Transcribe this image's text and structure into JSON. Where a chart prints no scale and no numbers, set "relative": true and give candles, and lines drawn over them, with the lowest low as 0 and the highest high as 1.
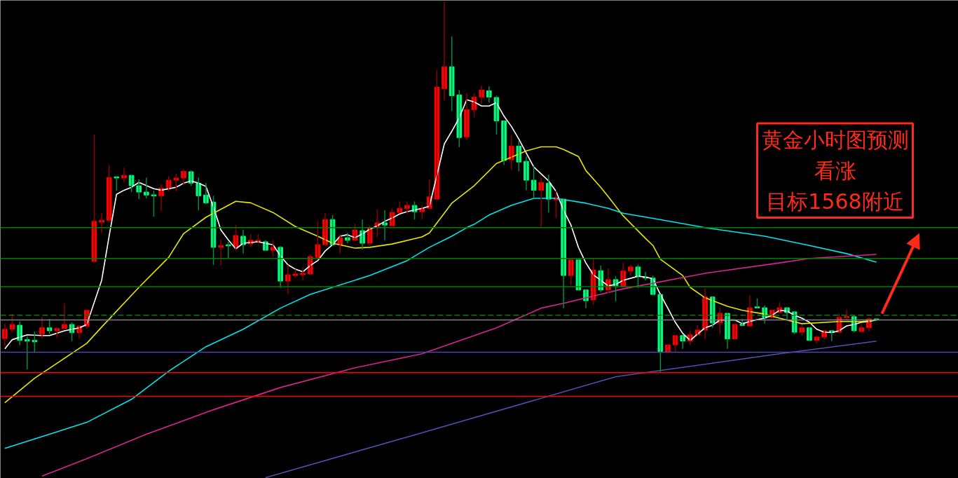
{
  "chart_data": {
    "type": "candlestick",
    "relative": true,
    "grid": false,
    "colors": [
      "#ff0000",
      "#ff0000",
      "#00ff7f",
      "#00ff7f",
      "#00ff7f",
      "#ff0000",
      "#00ff7f",
      "#ff0000",
      "#ff0000",
      "#00ff7f",
      "#ff0000",
      "#ff0000",
      "#ff0000",
      "#ff0000",
      "#ff0000",
      "#00ff7f",
      "#ff0000",
      "#00ff7f",
      "#00ff7f",
      "#00ff7f",
      "#00ff7f",
      "#ff0000",
      "#ff0000",
      "#ff0000",
      "#ff0000",
      "#00ff7f",
      "#00ff7f",
      "#00ff7f",
      "#00ff7f",
      "#ff0000",
      "#00ff7f",
      "#ff0000",
      "#00ff7f",
      "#ff0000",
      "#ff0000",
      "#00ff7f",
      "#ff0000",
      "#00ff7f",
      "#ff0000",
      "#ff0000",
      "#ff0000",
      "#ff0000",
      "#ff0000",
      "#ff0000",
      "#00ff7f",
      "#ff0000",
      "#00ff7f",
      "#ff0000",
      "#00ff7f",
      "#ff0000",
      "#ff0000",
      "#00ff7f",
      "#ff0000",
      "#ff0000",
      "#ff0000",
      "#00ff7f",
      "#ff0000",
      "#ff0000",
      "#ff0000",
      "#ff0000",
      "#00ff7f",
      "#00ff7f",
      "#ff0000",
      "#ff0000",
      "#ff0000",
      "#00ff7f",
      "#00ff7f",
      "#00ff7f",
      "#ff0000",
      "#00ff7f",
      "#00ff7f",
      "#00ff7f",
      "#ff0000",
      "#00ff7f",
      "#ff0000",
      "#00ff7f",
      "#ff0000",
      "#00ff7f",
      "#00ff7f",
      "#ff0000",
      "#00ff7f",
      "#ff0000",
      "#00ff7f",
      "#ff0000",
      "#ff0000",
      "#00ff7f",
      "#00ff7f",
      "#00ff7f",
      "#00ff7f",
      "#ff0000",
      "#ff0000",
      "#00ff7f",
      "#ff0000",
      "#ff0000",
      "#ff0000",
      "#00ff7f",
      "#ff0000",
      "#00ff7f",
      "#ff0000",
      "#00ff7f",
      "#ff0000",
      "#00ff7f",
      "#00ff7f",
      "#ff0000",
      "#ff0000",
      "#00ff7f",
      "#00ff7f",
      "#ff0000",
      "#00ff7f",
      "#ff0000",
      "#ff0000",
      "#00ff7f",
      "#ff0000",
      "#ff0000",
      "#00ff7f",
      "#ff0000",
      "#ff0000",
      "#00ff7f"
    ],
    "categories": [
      null,
      null,
      null,
      null,
      null,
      null,
      null,
      null,
      null,
      null,
      null,
      null,
      null,
      null,
      null,
      null,
      null,
      null,
      null,
      null,
      null,
      null,
      null,
      null,
      null,
      null,
      null,
      null,
      null,
      null,
      null,
      null,
      null,
      null,
      null,
      null,
      null,
      null,
      null,
      null,
      null,
      null,
      null,
      null,
      null,
      null,
      null,
      null,
      null,
      null,
      null,
      null,
      null,
      null,
      null,
      null,
      null,
      null,
      null,
      null,
      null,
      null,
      null,
      null,
      null,
      null,
      null,
      null,
      null,
      null,
      null,
      null,
      null,
      null,
      null,
      null,
      null,
      null,
      null,
      null,
      null,
      null,
      null,
      null,
      null,
      null,
      null,
      null,
      null,
      null,
      null,
      null,
      null,
      null,
      null,
      null,
      null,
      null,
      null,
      null,
      null,
      null,
      null,
      null,
      null,
      null,
      null,
      null,
      null,
      null,
      null,
      null,
      null,
      null,
      null,
      null,
      null,
      null
    ],
    "ohlc": [
      [
        0.092,
        0.132,
        0.07,
        0.117
      ],
      [
        0.117,
        0.158,
        0.108,
        0.13
      ],
      [
        0.128,
        0.138,
        0.074,
        0.087
      ],
      [
        0.089,
        0.098,
        0.009,
        0.085
      ],
      [
        0.087,
        0.111,
        0.055,
        0.083
      ],
      [
        0.104,
        0.151,
        0.091,
        0.121
      ],
      [
        0.121,
        0.145,
        0.104,
        0.113
      ],
      [
        0.113,
        0.123,
        0.094,
        0.119
      ],
      [
        0.119,
        0.187,
        0.117,
        0.13
      ],
      [
        0.13,
        0.136,
        0.085,
        0.108
      ],
      [
        0.108,
        0.128,
        0.092,
        0.125
      ],
      [
        0.125,
        0.168,
        0.119,
        0.168
      ],
      [
        0.3,
        0.642,
        0.296,
        0.408
      ],
      [
        0.406,
        0.43,
        0.377,
        0.411
      ],
      [
        0.411,
        0.56,
        0.404,
        0.526
      ],
      [
        0.528,
        0.53,
        0.491,
        0.525
      ],
      [
        0.525,
        0.553,
        0.513,
        0.532
      ],
      [
        0.532,
        0.534,
        0.487,
        0.504
      ],
      [
        0.504,
        0.521,
        0.468,
        0.487
      ],
      [
        0.487,
        0.526,
        0.47,
        0.479
      ],
      [
        0.479,
        0.491,
        0.421,
        0.477
      ],
      [
        0.477,
        0.509,
        0.436,
        0.498
      ],
      [
        0.498,
        0.53,
        0.489,
        0.519
      ],
      [
        0.519,
        0.536,
        0.489,
        0.525
      ],
      [
        0.525,
        0.549,
        0.506,
        0.543
      ],
      [
        0.542,
        0.545,
        0.504,
        0.511
      ],
      [
        0.511,
        0.526,
        0.438,
        0.477
      ],
      [
        0.479,
        0.511,
        0.455,
        0.458
      ],
      [
        0.46,
        0.477,
        0.291,
        0.338
      ],
      [
        0.338,
        0.358,
        0.289,
        0.343
      ],
      [
        0.345,
        0.353,
        0.308,
        0.342
      ],
      [
        0.34,
        0.398,
        0.33,
        0.37
      ],
      [
        0.368,
        0.385,
        0.321,
        0.345
      ],
      [
        0.347,
        0.374,
        0.338,
        0.357
      ],
      [
        0.353,
        0.374,
        0.349,
        0.357
      ],
      [
        0.353,
        0.357,
        0.328,
        0.33
      ],
      [
        0.33,
        0.357,
        0.313,
        0.338
      ],
      [
        0.338,
        0.342,
        0.228,
        0.247
      ],
      [
        0.247,
        0.291,
        0.213,
        0.264
      ],
      [
        0.262,
        0.279,
        0.255,
        0.266
      ],
      [
        0.264,
        0.285,
        0.249,
        0.268
      ],
      [
        0.266,
        0.319,
        0.264,
        0.313
      ],
      [
        0.311,
        0.409,
        0.311,
        0.345
      ],
      [
        0.345,
        0.43,
        0.342,
        0.413
      ],
      [
        0.413,
        0.425,
        0.343,
        0.345
      ],
      [
        0.345,
        0.374,
        0.321,
        0.364
      ],
      [
        0.364,
        0.377,
        0.349,
        0.357
      ],
      [
        0.357,
        0.402,
        0.355,
        0.385
      ],
      [
        0.383,
        0.413,
        0.332,
        0.349
      ],
      [
        0.349,
        0.396,
        0.342,
        0.391
      ],
      [
        0.394,
        0.44,
        0.366,
        0.404
      ],
      [
        0.404,
        0.438,
        0.357,
        0.398
      ],
      [
        0.396,
        0.443,
        0.394,
        0.432
      ],
      [
        0.432,
        0.462,
        0.43,
        0.443
      ],
      [
        0.443,
        0.462,
        0.428,
        0.451
      ],
      [
        0.451,
        0.462,
        0.413,
        0.434
      ],
      [
        0.434,
        0.451,
        0.413,
        0.443
      ],
      [
        0.443,
        0.521,
        0.44,
        0.474
      ],
      [
        0.468,
        0.817,
        0.468,
        0.77
      ],
      [
        0.766,
        1,
        0.734,
        0.825
      ],
      [
        0.825,
        0.906,
        0.706,
        0.747
      ],
      [
        0.749,
        0.762,
        0.608,
        0.634
      ],
      [
        0.636,
        0.753,
        0.628,
        0.709
      ],
      [
        0.709,
        0.753,
        0.689,
        0.743
      ],
      [
        0.743,
        0.774,
        0.726,
        0.762
      ],
      [
        0.76,
        0.772,
        0.728,
        0.743
      ],
      [
        0.742,
        0.747,
        0.642,
        0.679
      ],
      [
        0.679,
        0.679,
        0.56,
        0.572
      ],
      [
        0.574,
        0.64,
        0.547,
        0.611
      ],
      [
        0.611,
        0.626,
        0.543,
        0.568
      ],
      [
        0.57,
        0.583,
        0.492,
        0.519
      ],
      [
        0.519,
        0.557,
        0.47,
        0.492
      ],
      [
        0.492,
        0.525,
        0.392,
        0.513
      ],
      [
        0.511,
        0.534,
        0.432,
        0.468
      ],
      [
        0.466,
        0.491,
        0.417,
        0.472
      ],
      [
        0.468,
        0.468,
        0.174,
        0.262
      ],
      [
        0.262,
        0.304,
        0.236,
        0.304
      ],
      [
        0.304,
        0.309,
        0.221,
        0.223
      ],
      [
        0.223,
        0.225,
        0.174,
        0.194
      ],
      [
        0.196,
        0.306,
        0.183,
        0.277
      ],
      [
        0.275,
        0.289,
        0.217,
        0.223
      ],
      [
        0.223,
        0.281,
        0.215,
        0.251
      ],
      [
        0.251,
        0.26,
        0.192,
        0.234
      ],
      [
        0.232,
        0.296,
        0.23,
        0.274
      ],
      [
        0.274,
        0.291,
        0.262,
        0.285
      ],
      [
        0.285,
        0.291,
        0.228,
        0.26
      ],
      [
        0.258,
        0.272,
        0.249,
        0.255
      ],
      [
        0.255,
        0.262,
        0.208,
        0.211
      ],
      [
        0.211,
        0.211,
        0,
        0.055
      ],
      [
        0.055,
        0.075,
        0.055,
        0.075
      ],
      [
        0.075,
        0.102,
        0.055,
        0.1
      ],
      [
        0.1,
        0.1,
        0.064,
        0.085
      ],
      [
        0.085,
        0.113,
        0.074,
        0.102
      ],
      [
        0.102,
        0.128,
        0.102,
        0.115
      ],
      [
        0.115,
        0.228,
        0.089,
        0.204
      ],
      [
        0.204,
        0.204,
        0.121,
        0.134
      ],
      [
        0.134,
        0.175,
        0.104,
        0.16
      ],
      [
        0.16,
        0.16,
        0.064,
        0.091
      ],
      [
        0.091,
        0.13,
        0.091,
        0.13
      ],
      [
        0.13,
        0.145,
        0.128,
        0.128
      ],
      [
        0.126,
        0.209,
        0.126,
        0.175
      ],
      [
        0.177,
        0.2,
        0.174,
        0.175
      ],
      [
        0.175,
        0.181,
        0.132,
        0.149
      ],
      [
        0.149,
        0.17,
        0.147,
        0.168
      ],
      [
        0.162,
        0.191,
        0.16,
        0.175
      ],
      [
        0.175,
        0.177,
        0.142,
        0.162
      ],
      [
        0.164,
        0.166,
        0.104,
        0.109
      ],
      [
        0.109,
        0.13,
        0.1,
        0.121
      ],
      [
        0.121,
        0.123,
        0.085,
        0.087
      ],
      [
        0.087,
        0.1,
        0.079,
        0.096
      ],
      [
        0.096,
        0.113,
        0.089,
        0.113
      ],
      [
        0.113,
        0.113,
        0.085,
        0.108
      ],
      [
        0.109,
        0.16,
        0.108,
        0.149
      ],
      [
        0.149,
        0.17,
        0.142,
        0.151
      ],
      [
        0.151,
        0.155,
        0.109,
        0.113
      ],
      [
        0.111,
        0.13,
        0.111,
        0.121
      ],
      [
        0.121,
        0.149,
        0.111,
        0.145
      ],
      [
        0.145,
        0.145,
        0.142,
        0.142
      ]
    ],
    "series": [
      {
        "type": "line",
        "color": "#ffffff",
        "values": [
          0.064,
          0.089,
          null,
          0.102,
          null,
          0.1,
          0.1,
          null,
          0.113,
          null,
          0.121,
          0.13,
          null,
          0.249,
          0.368,
          0.481,
          0.492,
          0.5,
          0.513,
          null,
          0.496,
          0.492,
          null,
          0.5,
          0.511,
          0.517,
          0.511,
          0.502,
          0.447,
          0.385,
          0.358,
          0.334,
          0.349,
          null,
          0.353,
          null,
          0.345,
          0.315,
          0.291,
          0.279,
          0.272,
          0.289,
          0.302,
          0.328,
          0.345,
          0.368,
          0.372,
          0.364,
          0.374,
          0.387,
          0.396,
          0.408,
          0.417,
          0.428,
          0.434,
          null,
          0.443,
          0.449,
          0.532,
          0.617,
          0.651,
          0.687,
          0.736,
          0.73,
          0.719,
          0.719,
          0.728,
          0.692,
          0.664,
          0.63,
          0.592,
          0.555,
          0.536,
          0.517,
          0.489,
          0.438,
          0.398,
          0.338,
          0.296,
          0.264,
          0.249,
          0.234,
          0.238,
          0.249,
          null,
          0.26,
          0.258,
          0.253,
          0.211,
          0.174,
          0.136,
          0.106,
          0.087,
          0.104,
          0.121,
          0.128,
          0.142,
          null,
          0.142,
          0.132,
          0.138,
          0.143,
          0.147,
          0.155,
          0.168,
          0.166,
          0.155,
          0.147,
          0.136,
          0.117,
          0.109,
          0.108,
          0.113,
          0.126,
          0.13,
          0.136,
          0.138,
          0.142
        ]
      },
      {
        "type": "line",
        "color": "#e6e600",
        "values": [
          -0.081,
          null,
          null,
          null,
          -0.015,
          null,
          null,
          null,
          null,
          null,
          null,
          0.079,
          null,
          0.123,
          null,
          null,
          null,
          null,
          0.23,
          null,
          null,
          null,
          0.311,
          null,
          0.375,
          null,
          null,
          0.419,
          null,
          null,
          null,
          0.462,
          null,
          0.458,
          null,
          null,
          0.432,
          null,
          null,
          0.394,
          null,
          null,
          0.368,
          null,
          0.349,
          null,
          null,
          0.336,
          null,
          0.338,
          null,
          null,
          0.347,
          null,
          null,
          null,
          0.366,
          0.377,
          null,
          null,
          0.457,
          null,
          null,
          0.504,
          null,
          null,
          0.564,
          null,
          null,
          null,
          0.598,
          null,
          0.609,
          null,
          0.609,
          0.602,
          null,
          0.583,
          0.545,
          null,
          0.5,
          0.475,
          null,
          0.423,
          null,
          null,
          0.362,
          0.343,
          0.306,
          null,
          null,
          0.262,
          0.23,
          null,
          0.202,
          null,
          null,
          0.179,
          null,
          0.168,
          null,
          null,
          0.158,
          null,
          0.147,
          null,
          null,
          0.132,
          null,
          null,
          null,
          null,
          0.138,
          null,
          null,
          0.138,
          null,
          0.142
        ]
      },
      {
        "type": "line",
        "color": "#00e5ee",
        "values": [
          -0.204,
          null,
          null,
          null,
          null,
          null,
          -0.166,
          null,
          null,
          null,
          null,
          -0.134,
          null,
          null,
          null,
          null,
          null,
          -0.072,
          null,
          null,
          null,
          null,
          0.004,
          null,
          null,
          null,
          null,
          0.07,
          null,
          null,
          null,
          null,
          0.117,
          null,
          null,
          null,
          null,
          0.174,
          null,
          null,
          null,
          0.211,
          null,
          null,
          null,
          null,
          null,
          null,
          null,
          0.262,
          null,
          null,
          null,
          null,
          0.302,
          null,
          null,
          0.338,
          null,
          null,
          0.368,
          null,
          0.391,
          0.4,
          null,
          0.425,
          null,
          null,
          0.451,
          null,
          null,
          0.47,
          null,
          null,
          0.47,
          null,
          null,
          null,
          0.457,
          null,
          null,
          0.443,
          null,
          0.43,
          null,
          null,
          null,
          null,
          null,
          0.409,
          null,
          null,
          null,
          null,
          0.391,
          null,
          null,
          null,
          null,
          null,
          null,
          null,
          0.368,
          null,
          null,
          null,
          null,
          null,
          0.343,
          null,
          null,
          null,
          null,
          0.321,
          null,
          null,
          null,
          0.298
        ]
      },
      {
        "type": "line",
        "color": "#d6258f",
        "values": [
          null,
          null,
          null,
          null,
          null,
          -0.279,
          null,
          null,
          null,
          null,
          null,
          -0.232,
          null,
          null,
          null,
          null,
          null,
          null,
          null,
          -0.166,
          null,
          null,
          null,
          null,
          null,
          null,
          null,
          null,
          -0.1,
          null,
          null,
          null,
          null,
          null,
          null,
          null,
          null,
          -0.04,
          null,
          null,
          null,
          null,
          null,
          null,
          null,
          null,
          null,
          0.013,
          null,
          null,
          null,
          null,
          null,
          null,
          null,
          null,
          0.051,
          null,
          null,
          null,
          null,
          null,
          null,
          null,
          null,
          null,
          0.121,
          null,
          null,
          null,
          null,
          null,
          0.174,
          null,
          null,
          0.187,
          null,
          null,
          null,
          null,
          null,
          null,
          null,
          0.226,
          null,
          null,
          null,
          null,
          null,
          null,
          null,
          null,
          null,
          null,
          0.268,
          null,
          null,
          null,
          null,
          null,
          null,
          null,
          null,
          null,
          0.296,
          null,
          null,
          null,
          0.308,
          null,
          null,
          null,
          null,
          null,
          null,
          null,
          null,
          0.319
        ]
      },
      {
        "type": "line",
        "color": "#5050b0",
        "values": [
          null,
          null,
          null,
          null,
          null,
          null,
          null,
          null,
          null,
          null,
          null,
          null,
          null,
          null,
          null,
          null,
          null,
          null,
          null,
          null,
          null,
          null,
          null,
          null,
          null,
          null,
          null,
          null,
          null,
          null,
          null,
          null,
          null,
          null,
          null,
          -0.283,
          null,
          null,
          null,
          null,
          null,
          null,
          null,
          null,
          null,
          null,
          null,
          null,
          null,
          null,
          null,
          null,
          null,
          null,
          null,
          null,
          -0.162,
          null,
          null,
          null,
          null,
          null,
          null,
          null,
          null,
          null,
          null,
          null,
          null,
          null,
          null,
          null,
          null,
          null,
          null,
          null,
          null,
          null,
          null,
          null,
          null,
          null,
          -0.011,
          null,
          null,
          null,
          null,
          null,
          null,
          null,
          null,
          null,
          null,
          null,
          null,
          null,
          null,
          null,
          null,
          null,
          null,
          null,
          null,
          null,
          0.051,
          null,
          null,
          null,
          null,
          null,
          null,
          null,
          null,
          null,
          null,
          null,
          null,
          0.085
        ]
      }
    ],
    "ref_lines": [
      {
        "axis": "y",
        "value": 0.391,
        "color": "#008000",
        "line_style": "solid"
      },
      {
        "axis": "y",
        "value": 0.308,
        "color": "#008000",
        "line_style": "solid"
      },
      {
        "axis": "y",
        "value": 0.232,
        "color": "#008000",
        "line_style": "solid"
      },
      {
        "axis": "y",
        "value": 0.155,
        "color": "#008000",
        "line_style": "dashed"
      },
      {
        "axis": "y",
        "value": 0.142,
        "color": "#808080",
        "line_style": "solid"
      },
      {
        "axis": "y",
        "value": 0.055,
        "color": "#4848a8",
        "line_style": "solid"
      },
      {
        "axis": "y",
        "value": 0.0,
        "color": "#ff0000",
        "line_style": "solid"
      },
      {
        "axis": "y",
        "value": -0.064,
        "color": "#ff0000",
        "line_style": "solid"
      }
    ],
    "annotations": [
      "黄金小时图预测",
      "看涨",
      "目标1568附近"
    ]
  }
}
